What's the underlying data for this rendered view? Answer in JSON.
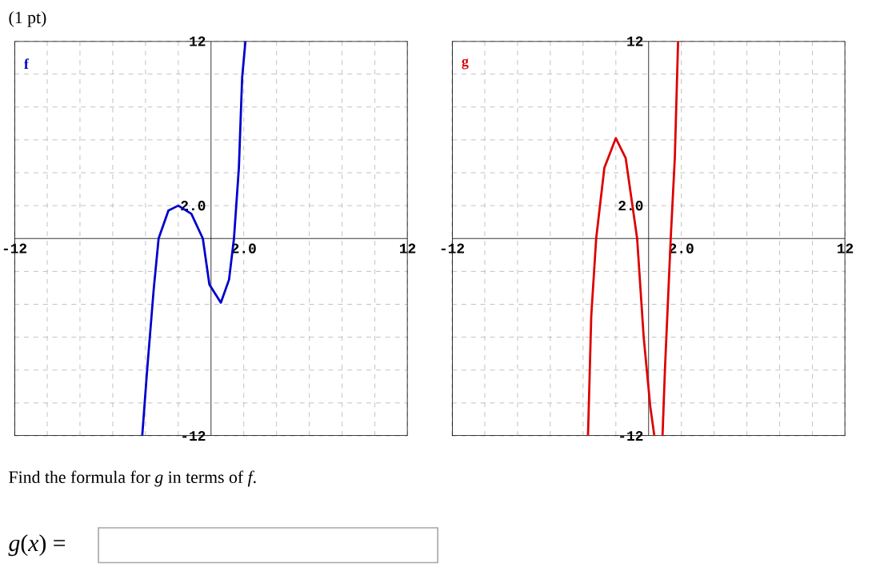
{
  "chart_data": [
    {
      "type": "line",
      "annotations": [
        "(1 pt)",
        "Find the formula for *g* in terms of *f*.",
        "*g*(*x*) ="
      ],
      "xlim": [
        -12,
        12
      ],
      "ylim": [
        -12,
        12
      ],
      "xticks": [
        -12,
        {
          "value": -10,
          "label": null
        },
        {
          "value": -8,
          "label": null
        },
        {
          "value": -6,
          "label": null
        },
        {
          "value": -4,
          "label": null
        },
        {
          "value": -2,
          "label": null
        },
        {
          "value": 0,
          "label": null
        },
        {
          "value": 2,
          "label": "2.0"
        },
        {
          "value": 4,
          "label": null
        },
        {
          "value": 6,
          "label": null
        },
        {
          "value": 8,
          "label": null
        },
        {
          "value": 10,
          "label": null
        },
        12
      ],
      "yticks": [
        -12,
        {
          "value": -10,
          "label": null
        },
        {
          "value": -8,
          "label": null
        },
        {
          "value": -6,
          "label": null
        },
        {
          "value": -4,
          "label": null
        },
        {
          "value": -2,
          "label": null
        },
        {
          "value": 0,
          "label": null
        },
        {
          "value": 2,
          "label": "2.0"
        },
        {
          "value": 4,
          "label": null
        },
        {
          "value": 6,
          "label": null
        },
        {
          "value": 8,
          "label": null
        },
        {
          "value": 10,
          "label": null
        },
        12
      ],
      "grid": true,
      "series": [
        {
          "name": "f",
          "color": "#0000cc",
          "x": [
            -4.2,
            -3.9,
            -3.5,
            -3.2,
            -2.6,
            -2,
            -1.2,
            -0.5,
            -0.1,
            0.6,
            1.1,
            1.4,
            1.7,
            1.9,
            2.1
          ],
          "values": [
            -12,
            -8,
            -3.1,
            0,
            1.7,
            2,
            1.5,
            0,
            -2.8,
            -3.9,
            -2.5,
            0,
            4.3,
            9.8,
            12
          ]
        }
      ]
    },
    {
      "type": "line",
      "xlim": [
        -12,
        12
      ],
      "ylim": [
        -12,
        12
      ],
      "xticks": [
        -12,
        {
          "value": -10,
          "label": null
        },
        {
          "value": -8,
          "label": null
        },
        {
          "value": -6,
          "label": null
        },
        {
          "value": -4,
          "label": null
        },
        {
          "value": -2,
          "label": null
        },
        {
          "value": 0,
          "label": null
        },
        {
          "value": 2,
          "label": "2.0"
        },
        {
          "value": 4,
          "label": null
        },
        {
          "value": 6,
          "label": null
        },
        {
          "value": 8,
          "label": null
        },
        {
          "value": 10,
          "label": null
        },
        12
      ],
      "yticks": [
        -12,
        {
          "value": -10,
          "label": null
        },
        {
          "value": -8,
          "label": null
        },
        {
          "value": -6,
          "label": null
        },
        {
          "value": -4,
          "label": null
        },
        {
          "value": -2,
          "label": null
        },
        {
          "value": 0,
          "label": null
        },
        {
          "value": 2,
          "label": "2.0"
        },
        {
          "value": 4,
          "label": null
        },
        {
          "value": 6,
          "label": null
        },
        {
          "value": 8,
          "label": null
        },
        {
          "value": 10,
          "label": null
        },
        12
      ],
      "grid": true,
      "series": [
        {
          "name": "g",
          "color": "#dd0000",
          "x": [
            -3.7,
            -3.5,
            -3.2,
            -2.7,
            -2,
            -1.4,
            -0.7,
            -0.3,
            0.1,
            0.35,
            0.6,
            0.85,
            1,
            1.35,
            1.6,
            1.8
          ],
          "values": [
            -12,
            -4.7,
            0,
            4.3,
            6.1,
            4.9,
            0,
            -6,
            -10.2,
            -12,
            null,
            -12,
            -7.9,
            0,
            4.9,
            12
          ]
        }
      ]
    }
  ]
}
